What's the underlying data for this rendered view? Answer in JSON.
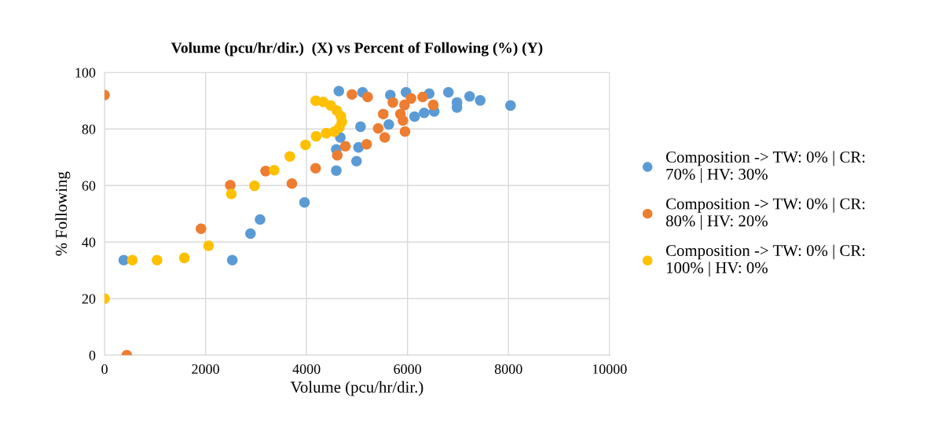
{
  "chart_data": {
    "type": "scatter",
    "title": "Volume (pcu/hr/dir.)  (X) vs Percent of Following (%) (Y)",
    "xlabel": "Volume (pcu/hr/dir.)",
    "ylabel": "% Following",
    "xlim": [
      0,
      10000
    ],
    "xticks": [
      0,
      2000,
      4000,
      6000,
      8000,
      10000
    ],
    "ylim": [
      0,
      100
    ],
    "yticks": [
      0,
      20,
      40,
      60,
      80,
      100
    ],
    "grid": true,
    "legend": "right",
    "marker": "circle",
    "series": [
      {
        "name": "Composition -> TW: 0% | CR: 70% | HV: 30%",
        "color": "#5b9bd5",
        "x": [
          380,
          2530,
          2890,
          3080,
          3960,
          4590,
          4990,
          4590,
          5030,
          4670,
          4730,
          5070,
          5630,
          6140,
          6330,
          6530,
          4640,
          5110,
          5660,
          5970,
          6430,
          6810,
          6980,
          6980,
          7230,
          7440,
          8040
        ],
        "values": [
          33.6,
          33.6,
          43,
          48,
          54,
          65.3,
          68.6,
          72.8,
          73.5,
          77,
          null,
          80.8,
          81.6,
          84.4,
          85.7,
          86.2,
          93.4,
          93,
          92,
          93,
          92.5,
          93,
          89.4,
          87.6,
          91.5,
          90.1,
          88.3
        ]
      },
      {
        "name": "Composition -> TW: 0% | CR: 80% | HV: 20%",
        "color": "#ed7d31",
        "x": [
          0,
          440,
          1910,
          2490,
          3190,
          3710,
          4180,
          4610,
          4770,
          5190,
          5420,
          5550,
          5520,
          5710,
          5810,
          5940,
          5910,
          5950,
          5860,
          6070,
          6300,
          6510,
          4900,
          5210
        ],
        "values": [
          92,
          0,
          44.7,
          60.1,
          65.1,
          60.7,
          66.1,
          70.7,
          73.9,
          74.6,
          80.2,
          77,
          85.3,
          89.4,
          null,
          88.5,
          83,
          79.1,
          85.3,
          90.8,
          91.3,
          88.5,
          92.2,
          91.3
        ]
      },
      {
        "name": "Composition -> TW: 0% | CR: 100% | HV: 0%",
        "color": "#ffc000",
        "x": [
          0,
          550,
          1040,
          1580,
          2060,
          2510,
          2970,
          3360,
          3670,
          3980,
          4190,
          4390,
          4550,
          4650,
          4700,
          4680,
          4600,
          4480,
          4330,
          4180
        ],
        "values": [
          20,
          33.6,
          33.6,
          34.4,
          38.7,
          57,
          59.9,
          65.4,
          70.3,
          74.4,
          77.4,
          78.5,
          79,
          80.5,
          82.5,
          84.5,
          86.5,
          88.3,
          89.6,
          90
        ]
      }
    ]
  }
}
